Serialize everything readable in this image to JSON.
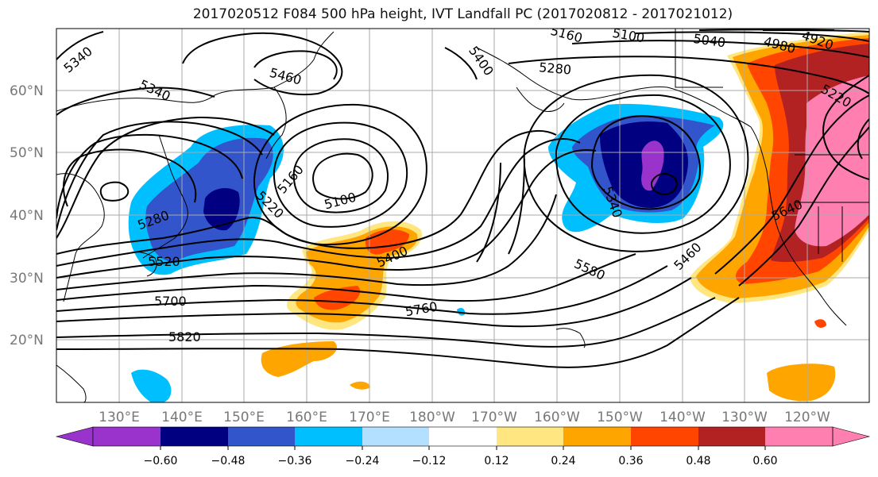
{
  "title": "2017020512 F084 500 hPa height, IVT Landfall PC (2017020812 - 2017021012)",
  "lat_labels": [
    "60°N",
    "50°N",
    "40°N",
    "30°N",
    "20°N"
  ],
  "lon_labels": [
    "130°E",
    "140°E",
    "150°E",
    "160°E",
    "170°E",
    "180°W",
    "170°W",
    "160°W",
    "150°W",
    "140°W",
    "130°W",
    "120°W"
  ],
  "contour_labels": [
    "5340",
    "5340",
    "5460",
    "5400",
    "5280",
    "5160",
    "5100",
    "5040",
    "4980",
    "4920",
    "5220",
    "5160",
    "5100",
    "5280",
    "5220",
    "5520",
    "5400",
    "5340",
    "5460",
    "5580",
    "5640",
    "5700",
    "5760",
    "5820"
  ],
  "colorbar": {
    "ticks": [
      "−0.60",
      "−0.48",
      "−0.36",
      "−0.24",
      "−0.12",
      "0.12",
      "0.24",
      "0.36",
      "0.48",
      "0.60"
    ],
    "colors": [
      "#9933cc",
      "#000080",
      "#3355cc",
      "#00bfff",
      "#b3e0ff",
      "#ffffff",
      "#ffe680",
      "#ffa500",
      "#ff4500",
      "#b22222",
      "#ff80b0",
      "#ff80b0"
    ]
  }
}
